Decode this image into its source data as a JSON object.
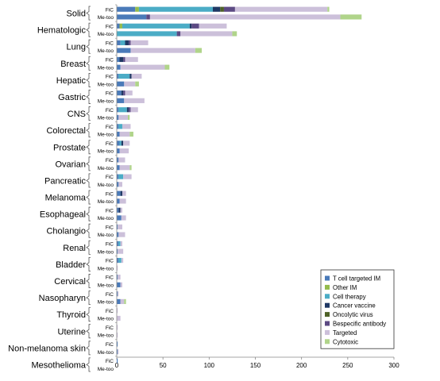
{
  "chart_data": {
    "type": "bar",
    "orientation": "horizontal",
    "stacked": true,
    "title": "",
    "xlabel": "",
    "ylabel": "",
    "xlim": [
      0,
      300
    ],
    "x_ticks": [
      0,
      50,
      100,
      150,
      200,
      250,
      300
    ],
    "grid": false,
    "legend_position": "bottom-right",
    "legend": [
      {
        "name": "T cell targeted IM",
        "color": "#4a7ab9"
      },
      {
        "name": "Other IM",
        "color": "#94bb4c"
      },
      {
        "name": "Cell therapy",
        "color": "#4bacc6"
      },
      {
        "name": "Cancer vaccine",
        "color": "#1f3864"
      },
      {
        "name": "Oncolytic virus",
        "color": "#4f6228"
      },
      {
        "name": "Bespecific antibody",
        "color": "#5c4a83"
      },
      {
        "name": "Targeted",
        "color": "#ccc0da"
      },
      {
        "name": "Cytotoxic",
        "color": "#b0d48a"
      }
    ],
    "segment_order": [
      "T cell targeted IM",
      "Other IM",
      "Cell therapy",
      "Cancer vaccine",
      "Oncolytic virus",
      "Bespecific antibody",
      "Targeted",
      "Cytotoxic"
    ],
    "categories": [
      {
        "name": "Solid",
        "bars": [
          {
            "label": "FiC",
            "values": [
              20,
              4,
              80,
              8,
              4,
              12,
              100,
              2
            ]
          },
          {
            "label": "Me-too",
            "values": [
              32,
              0,
              0,
              0,
              0,
              4,
              206,
              23
            ]
          }
        ]
      },
      {
        "name": "Hematologic",
        "bars": [
          {
            "label": "FiC",
            "values": [
              3,
              3,
              73,
              2,
              0,
              8,
              30,
              0
            ]
          },
          {
            "label": "Me-too",
            "values": [
              0,
              0,
              65,
              0,
              0,
              4,
              56,
              5
            ]
          }
        ]
      },
      {
        "name": "Lung",
        "bars": [
          {
            "label": "FiC",
            "values": [
              4,
              0,
              5,
              4,
              0,
              2,
              19,
              0
            ]
          },
          {
            "label": "Me-too",
            "values": [
              15,
              0,
              0,
              0,
              0,
              0,
              70,
              7
            ]
          }
        ]
      },
      {
        "name": "Breast",
        "bars": [
          {
            "label": "FiC",
            "values": [
              3,
              0,
              0,
              4,
              0,
              2,
              14,
              0
            ]
          },
          {
            "label": "Me-too",
            "values": [
              4,
              0,
              0,
              0,
              0,
              0,
              48,
              5
            ]
          }
        ]
      },
      {
        "name": "Hepatic",
        "bars": [
          {
            "label": "FiC",
            "values": [
              2,
              0,
              12,
              2,
              0,
              0,
              11,
              0
            ]
          },
          {
            "label": "Me-too",
            "values": [
              8,
              0,
              0,
              0,
              0,
              0,
              12,
              4
            ]
          }
        ]
      },
      {
        "name": "Gastric",
        "bars": [
          {
            "label": "FiC",
            "values": [
              5,
              0,
              0,
              2,
              0,
              2,
              8,
              0
            ]
          },
          {
            "label": "Me-too",
            "values": [
              8,
              0,
              0,
              0,
              0,
              0,
              22,
              0
            ]
          }
        ]
      },
      {
        "name": "CNS",
        "bars": [
          {
            "label": "FiC",
            "values": [
              2,
              0,
              9,
              2,
              0,
              2,
              8,
              0
            ]
          },
          {
            "label": "Me-too",
            "values": [
              2,
              0,
              0,
              0,
              0,
              0,
              10,
              2
            ]
          }
        ]
      },
      {
        "name": "Colorectal",
        "bars": [
          {
            "label": "FiC",
            "values": [
              2,
              0,
              4,
              0,
              0,
              0,
              9,
              0
            ]
          },
          {
            "label": "Me-too",
            "values": [
              3,
              0,
              0,
              0,
              0,
              0,
              11,
              4
            ]
          }
        ]
      },
      {
        "name": "Prostate",
        "bars": [
          {
            "label": "FiC",
            "values": [
              3,
              0,
              2,
              2,
              0,
              0,
              7,
              0
            ]
          },
          {
            "label": "Me-too",
            "values": [
              3,
              0,
              0,
              0,
              0,
              0,
              10,
              0
            ]
          }
        ]
      },
      {
        "name": "Ovarian",
        "bars": [
          {
            "label": "FiC",
            "values": [
              2,
              0,
              0,
              0,
              0,
              0,
              7,
              0
            ]
          },
          {
            "label": "Me-too",
            "values": [
              3,
              0,
              0,
              0,
              0,
              0,
              11,
              2
            ]
          }
        ]
      },
      {
        "name": "Pancreatic",
        "bars": [
          {
            "label": "FiC",
            "values": [
              2,
              0,
              5,
              0,
              0,
              0,
              9,
              0
            ]
          },
          {
            "label": "Me-too",
            "values": [
              2,
              0,
              0,
              0,
              0,
              0,
              4,
              0
            ]
          }
        ]
      },
      {
        "name": "Melanoma",
        "bars": [
          {
            "label": "FiC",
            "values": [
              4,
              0,
              0,
              2,
              0,
              0,
              4,
              0
            ]
          },
          {
            "label": "Me-too",
            "values": [
              3,
              0,
              0,
              0,
              0,
              0,
              7,
              0
            ]
          }
        ]
      },
      {
        "name": "Esophageal",
        "bars": [
          {
            "label": "FiC",
            "values": [
              2,
              0,
              0,
              2,
              0,
              0,
              2,
              0
            ]
          },
          {
            "label": "Me-too",
            "values": [
              5,
              0,
              0,
              0,
              0,
              0,
              5,
              0
            ]
          }
        ]
      },
      {
        "name": "Cholangio",
        "bars": [
          {
            "label": "FiC",
            "values": [
              1,
              0,
              0,
              0,
              0,
              0,
              5,
              0
            ]
          },
          {
            "label": "Me-too",
            "values": [
              2,
              0,
              0,
              0,
              0,
              0,
              7,
              0
            ]
          }
        ]
      },
      {
        "name": "Renal",
        "bars": [
          {
            "label": "FiC",
            "values": [
              2,
              0,
              2,
              0,
              0,
              0,
              2,
              0
            ]
          },
          {
            "label": "Me-too",
            "values": [
              1,
              0,
              0,
              0,
              0,
              0,
              6,
              0
            ]
          }
        ]
      },
      {
        "name": "Bladder",
        "bars": [
          {
            "label": "FiC",
            "values": [
              2,
              0,
              3,
              0,
              0,
              0,
              2,
              0
            ]
          },
          {
            "label": "Me-too",
            "values": [
              0,
              0,
              0,
              0,
              0,
              0,
              1,
              0
            ]
          }
        ]
      },
      {
        "name": "Cervical",
        "bars": [
          {
            "label": "FiC",
            "values": [
              1,
              0,
              0,
              0,
              0,
              0,
              3,
              0
            ]
          },
          {
            "label": "Me-too",
            "values": [
              4,
              0,
              0,
              0,
              0,
              0,
              2,
              0
            ]
          }
        ]
      },
      {
        "name": "Nasopharyn",
        "bars": [
          {
            "label": "FiC",
            "values": [
              1,
              0,
              0,
              0,
              0,
              0,
              1,
              0
            ]
          },
          {
            "label": "Me-too",
            "values": [
              4,
              0,
              0,
              0,
              0,
              0,
              4,
              2
            ]
          }
        ]
      },
      {
        "name": "Thyroid",
        "bars": [
          {
            "label": "FiC",
            "values": [
              0,
              0,
              0,
              0,
              0,
              0,
              1,
              0
            ]
          },
          {
            "label": "Me-too",
            "values": [
              0,
              0,
              0,
              0,
              0,
              0,
              4,
              0
            ]
          }
        ]
      },
      {
        "name": "Uterine",
        "bars": [
          {
            "label": "FiC",
            "values": [
              0,
              0,
              0,
              0,
              0,
              0,
              1,
              0
            ]
          },
          {
            "label": "Me-too",
            "values": [
              0,
              0,
              0,
              0,
              0,
              0,
              1,
              0
            ]
          }
        ]
      },
      {
        "name": "Non-melanoma skin",
        "bars": [
          {
            "label": "FiC",
            "values": [
              1,
              0,
              0,
              0,
              0,
              0,
              0,
              0
            ]
          },
          {
            "label": "Me-too",
            "values": [
              1,
              0,
              0,
              0,
              0,
              0,
              1,
              0
            ]
          }
        ]
      },
      {
        "name": "Mesothelioma",
        "bars": [
          {
            "label": "FiC",
            "values": [
              1,
              0,
              0,
              0,
              0,
              0,
              0,
              0
            ]
          },
          {
            "label": "Me-too",
            "values": [
              0,
              0,
              0,
              0,
              0,
              0,
              0,
              0
            ]
          }
        ]
      }
    ]
  }
}
